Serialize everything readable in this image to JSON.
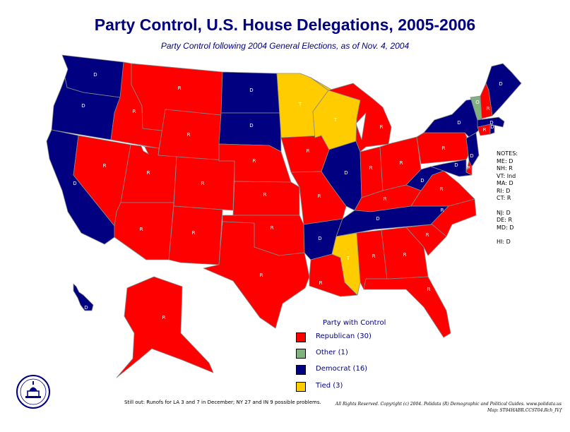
{
  "title": "Party Control, U.S. House Delegations, 2005-2006",
  "subtitle": "Party Control following 2004 General Elections, as of Nov. 4, 2004",
  "colors": {
    "R": "#ff0000",
    "D": "#000080",
    "O": "#7fb27f",
    "T": "#ffcc00"
  },
  "states": [
    {
      "id": "WA",
      "party": "D"
    },
    {
      "id": "OR",
      "party": "D"
    },
    {
      "id": "CA",
      "party": "D"
    },
    {
      "id": "ID",
      "party": "R"
    },
    {
      "id": "NV",
      "party": "R"
    },
    {
      "id": "MT",
      "party": "R"
    },
    {
      "id": "WY",
      "party": "R"
    },
    {
      "id": "UT",
      "party": "R"
    },
    {
      "id": "AZ",
      "party": "R"
    },
    {
      "id": "CO",
      "party": "R"
    },
    {
      "id": "NM",
      "party": "R"
    },
    {
      "id": "ND",
      "party": "D"
    },
    {
      "id": "SD",
      "party": "D"
    },
    {
      "id": "NE",
      "party": "R"
    },
    {
      "id": "KS",
      "party": "R"
    },
    {
      "id": "OK",
      "party": "R"
    },
    {
      "id": "TX",
      "party": "R"
    },
    {
      "id": "MN",
      "party": "T"
    },
    {
      "id": "IA",
      "party": "R"
    },
    {
      "id": "MO",
      "party": "R"
    },
    {
      "id": "AR",
      "party": "D"
    },
    {
      "id": "LA",
      "party": "R"
    },
    {
      "id": "WI",
      "party": "T"
    },
    {
      "id": "IL",
      "party": "D"
    },
    {
      "id": "MI",
      "party": "R"
    },
    {
      "id": "IN",
      "party": "R"
    },
    {
      "id": "OH",
      "party": "R"
    },
    {
      "id": "KY",
      "party": "R"
    },
    {
      "id": "TN",
      "party": "D"
    },
    {
      "id": "MS",
      "party": "T"
    },
    {
      "id": "AL",
      "party": "R"
    },
    {
      "id": "GA",
      "party": "R"
    },
    {
      "id": "FL",
      "party": "R"
    },
    {
      "id": "SC",
      "party": "R"
    },
    {
      "id": "NC",
      "party": "R"
    },
    {
      "id": "VA",
      "party": "R"
    },
    {
      "id": "WV",
      "party": "D"
    },
    {
      "id": "PA",
      "party": "R"
    },
    {
      "id": "NY",
      "party": "D"
    },
    {
      "id": "NJ",
      "party": "D"
    },
    {
      "id": "DE",
      "party": "R"
    },
    {
      "id": "MD",
      "party": "D"
    },
    {
      "id": "CT",
      "party": "R"
    },
    {
      "id": "RI",
      "party": "D"
    },
    {
      "id": "MA",
      "party": "D"
    },
    {
      "id": "VT",
      "party": "O"
    },
    {
      "id": "NH",
      "party": "R"
    },
    {
      "id": "ME",
      "party": "D"
    },
    {
      "id": "AK",
      "party": "R"
    },
    {
      "id": "HI",
      "party": "D"
    }
  ],
  "notes": {
    "heading": "NOTES:",
    "lines1": [
      "ME: D",
      "NH: R",
      "VT: Ind",
      "MA: D",
      "RI: D",
      "CT: R"
    ],
    "lines2": [
      "NJ: D",
      "DE: R",
      "MD: D"
    ],
    "lines3": [
      "HI: D"
    ]
  },
  "legend": {
    "title": "Party with Control",
    "items": [
      {
        "label": "Republican (30)",
        "color": "#ff0000"
      },
      {
        "label": "Other (1)",
        "color": "#7fb27f"
      },
      {
        "label": "Democrat (16)",
        "color": "#000080"
      },
      {
        "label": "Tied (3)",
        "color": "#ffcc00"
      }
    ]
  },
  "footnote": "Still out: Runofs for LA 3 and 7 in December; NY 27 and IN 9 possible problems.",
  "credit": {
    "line1": "All Rights Reserved. Copyright (c) 2004. Polidata (R) Demographic and Political Guides. www.polidata.us",
    "line2": "Map: ST04HABR.CCST04.Rch_IV.f"
  }
}
